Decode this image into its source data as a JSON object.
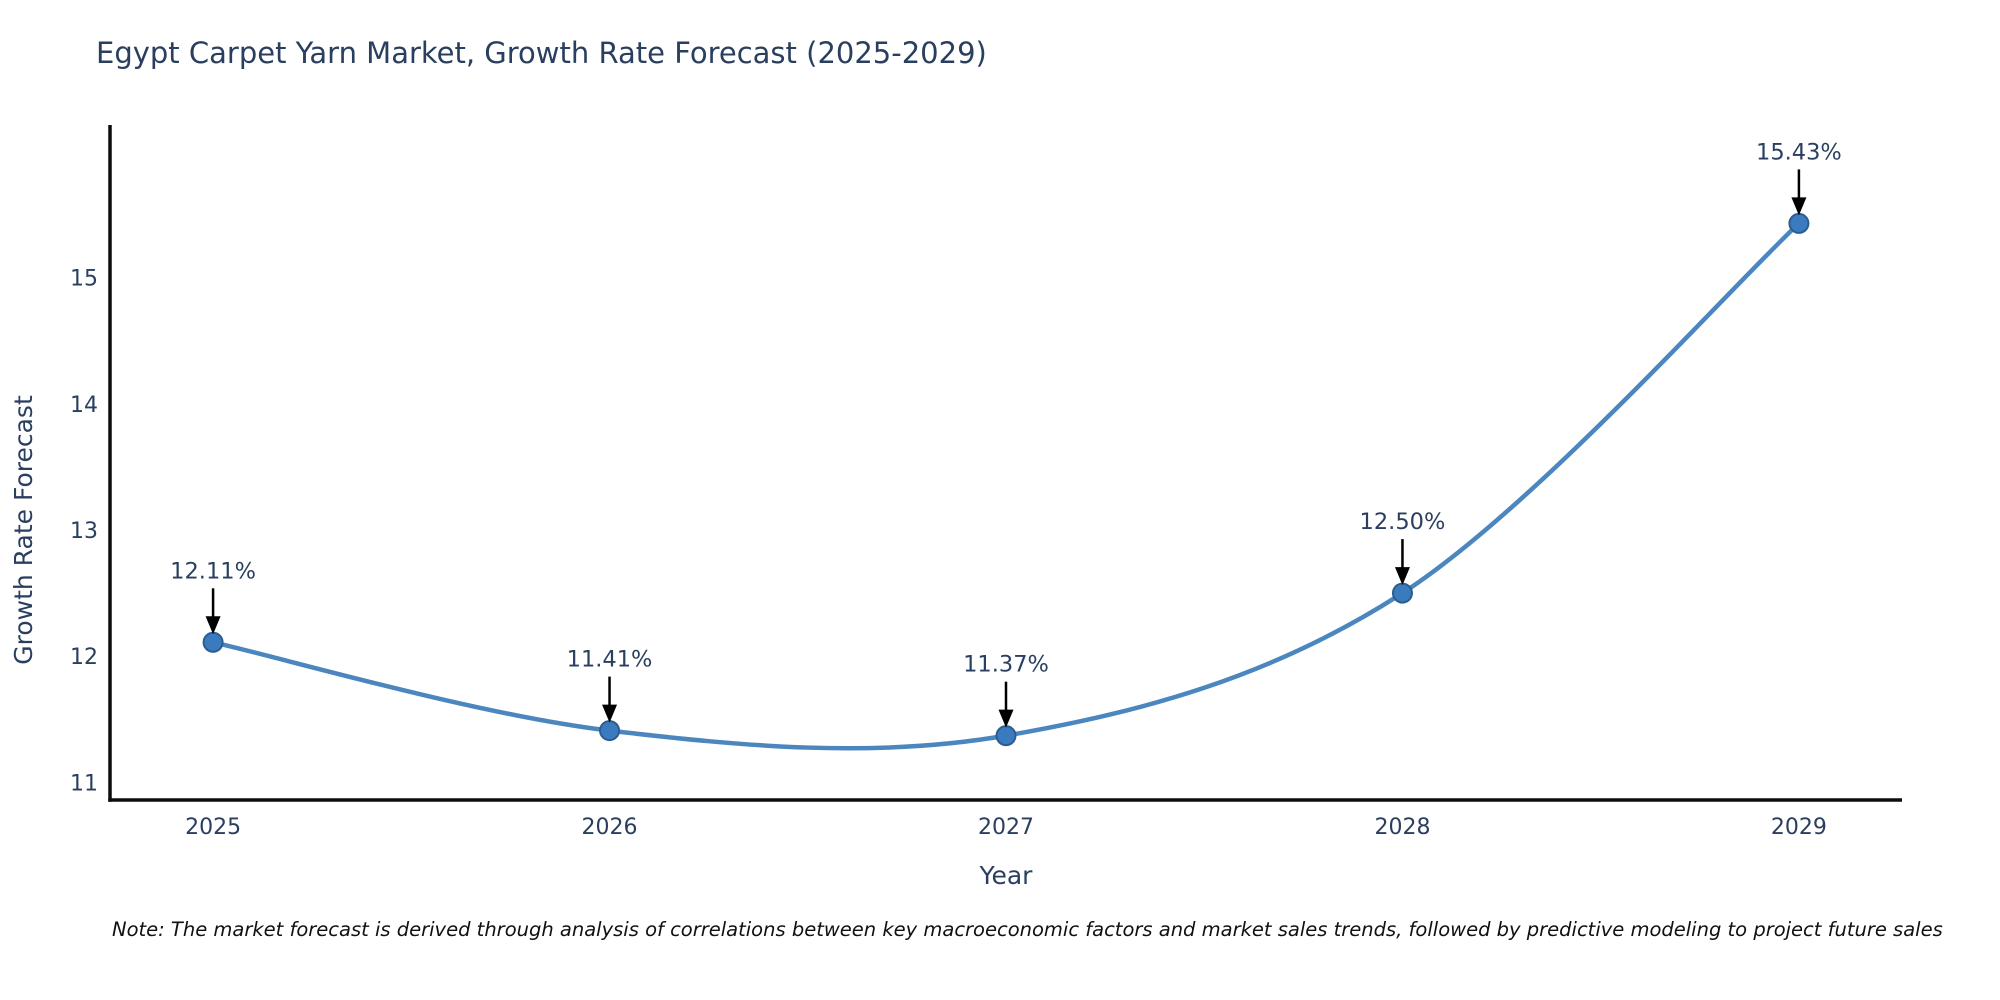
{
  "page": {
    "background": "#ffffff"
  },
  "chart_data": {
    "type": "line",
    "title": "Egypt Carpet Yarn Market, Growth Rate Forecast (2025-2029)",
    "xlabel": "Year",
    "ylabel": "Growth Rate Forecast",
    "x": [
      2025,
      2026,
      2027,
      2028,
      2029
    ],
    "values": [
      12.11,
      11.41,
      11.37,
      12.5,
      15.43
    ],
    "point_labels": [
      "12.11%",
      "11.41%",
      "11.37%",
      "12.50%",
      "15.43%"
    ],
    "yticks": [
      11,
      12,
      13,
      14,
      15
    ],
    "ylim": [
      10.86,
      16.21
    ],
    "xlim": [
      2024.74,
      2029.26
    ],
    "line_shape": "spline",
    "grid": false,
    "legend": "none",
    "colors": {
      "line": "#4c86bf",
      "marker_fill": "#3a7bbf",
      "marker_edge": "#2c5d8f",
      "axis": "#0d0d0d",
      "text": "#2a3f5f",
      "annotation_text": "#2a3f5f",
      "annotation_arrow": "#000000",
      "note_text": "#111111"
    },
    "note": "Note: The market forecast is derived through analysis of correlations between key macroeconomic factors and market sales trends, followed by predictive modeling to project future sales"
  }
}
